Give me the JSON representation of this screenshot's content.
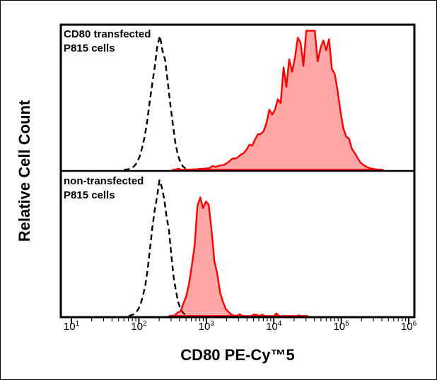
{
  "chart_data": {
    "type": "area",
    "subtype": "flow-cytometry-histogram-overlay",
    "x_scale": "log10",
    "x_tick_base": 10,
    "x_range_exponents": [
      1,
      6
    ],
    "x_ticks_exponents": [
      1,
      2,
      3,
      4,
      5,
      6
    ],
    "xlabel": "CD80 PE-Cy™5",
    "ylabel": "Relative Cell Count",
    "grid": false,
    "legend": "none",
    "frame_color": "#000000",
    "background_color": "#ffffff",
    "panels": [
      {
        "id": "top",
        "annotation_lines": [
          "CD80 transfected",
          "P815 cells"
        ],
        "series": [
          {
            "name": "control-dashed",
            "style": "dashed",
            "color": "#000000",
            "fill": "none",
            "peak_x": 215,
            "log10_mean": 2.33,
            "log10_sigma_left": 0.15,
            "log10_sigma_right": 0.12,
            "peak_height": 0.92,
            "range_log10": [
              1.78,
              2.92
            ],
            "jaggedness": 0.07,
            "baseline_noise": 0,
            "seed": 3
          },
          {
            "name": "cd80-pe-cy5-stained",
            "style": "filled",
            "color": "#ff0000",
            "fill": "rgba(255,0,0,0.35)",
            "peak_x": 46000,
            "log10_mean": 4.66,
            "log10_sigma_left": 0.55,
            "log10_sigma_right": 0.26,
            "peak_height": 0.96,
            "range_log10": [
              2.5,
              5.62
            ],
            "jaggedness": 0.24,
            "baseline_noise": 0.015,
            "seed": 11
          }
        ]
      },
      {
        "id": "bottom",
        "annotation_lines": [
          "non-transfected",
          "P815 cells"
        ],
        "series": [
          {
            "name": "control-dashed",
            "style": "dashed",
            "color": "#000000",
            "fill": "none",
            "peak_x": 215,
            "log10_mean": 2.33,
            "log10_sigma_left": 0.14,
            "log10_sigma_right": 0.12,
            "peak_height": 0.93,
            "range_log10": [
              1.85,
              2.9
            ],
            "jaggedness": 0.07,
            "baseline_noise": 0,
            "seed": 5
          },
          {
            "name": "cd80-pe-cy5-stained",
            "style": "filled",
            "color": "#ff0000",
            "fill": "rgba(255,0,0,0.35)",
            "peak_x": 890,
            "log10_mean": 2.95,
            "log10_sigma_left": 0.13,
            "log10_sigma_right": 0.14,
            "peak_height": 0.9,
            "range_log10": [
              2.45,
              4.5
            ],
            "jaggedness": 0.16,
            "baseline_noise": 0.018,
            "seed": 9
          }
        ]
      }
    ]
  }
}
